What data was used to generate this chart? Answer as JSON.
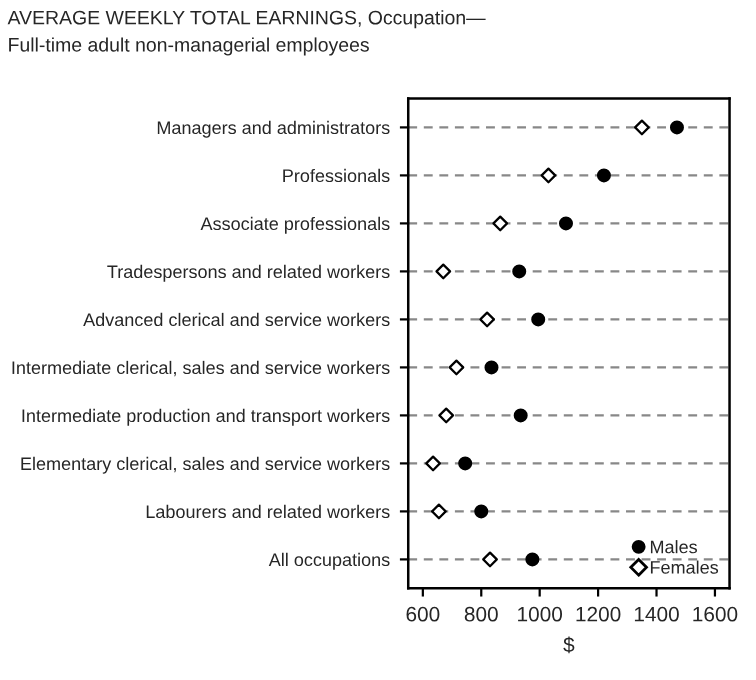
{
  "chart_data": {
    "type": "scatter",
    "orientation": "horizontal",
    "title": "AVERAGE WEEKLY TOTAL EARNINGS, Occupation—",
    "subtitle": "Full-time adult non-managerial employees",
    "xlabel": "$",
    "categories": [
      "Managers and administrators",
      "Professionals",
      "Associate professionals",
      "Tradespersons and related workers",
      "Advanced clerical and service workers",
      "Intermediate clerical, sales and service workers",
      "Intermediate production and transport workers",
      "Elementary clerical, sales and service workers",
      "Labourers and related workers",
      "All occupations"
    ],
    "series": [
      {
        "name": "Males",
        "color": "#000000",
        "marker": "circle",
        "values": [
          1470,
          1220,
          1090,
          930,
          995,
          835,
          935,
          745,
          800,
          975
        ]
      },
      {
        "name": "Females",
        "color": "#ffffff",
        "marker": "diamond",
        "values": [
          1350,
          1030,
          865,
          670,
          820,
          715,
          680,
          635,
          655,
          830
        ]
      }
    ],
    "xlim": [
      550,
      1650
    ],
    "xticks": [
      600,
      800,
      1000,
      1200,
      1400,
      1600
    ],
    "grid": "y",
    "line_style": "dashed",
    "legend": "bottom right"
  }
}
